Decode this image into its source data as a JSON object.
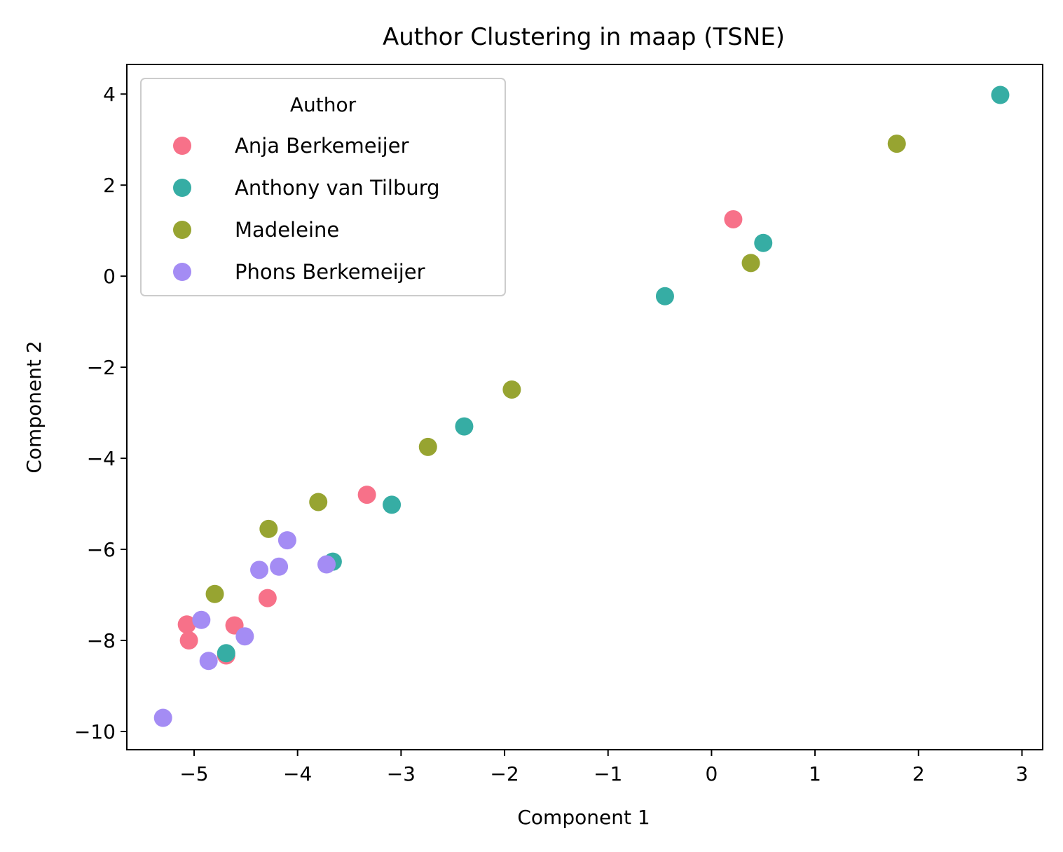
{
  "chart_data": {
    "type": "scatter",
    "title": "Author Clustering in maap (TSNE)",
    "xlabel": "Component 1",
    "ylabel": "Component 2",
    "xlim": [
      -5.65,
      3.2
    ],
    "ylim": [
      -10.4,
      4.65
    ],
    "xticks": [
      -5,
      -4,
      -3,
      -2,
      -1,
      0,
      1,
      2,
      3
    ],
    "yticks": [
      4,
      2,
      0,
      -2,
      -4,
      -6,
      -8,
      -10
    ],
    "grid": false,
    "legend": {
      "title": "Author",
      "placement": "top-left"
    },
    "series": [
      {
        "name": "Anja Berkemeijer",
        "color": "#f77189",
        "points": [
          [
            0.21,
            1.25
          ],
          [
            -3.33,
            -4.8
          ],
          [
            -4.29,
            -7.07
          ],
          [
            -4.61,
            -7.67
          ],
          [
            -5.07,
            -7.65
          ],
          [
            -5.05,
            -8.0
          ],
          [
            -4.69,
            -8.33
          ]
        ]
      },
      {
        "name": "Anthony van Tilburg",
        "color": "#36ada4",
        "points": [
          [
            2.79,
            3.98
          ],
          [
            0.5,
            0.73
          ],
          [
            -0.45,
            -0.44
          ],
          [
            -2.39,
            -3.3
          ],
          [
            -3.09,
            -5.02
          ],
          [
            -3.66,
            -6.27
          ],
          [
            -4.69,
            -8.28
          ]
        ]
      },
      {
        "name": "Madeleine",
        "color": "#97a431",
        "points": [
          [
            1.79,
            2.91
          ],
          [
            0.38,
            0.29
          ],
          [
            -1.93,
            -2.49
          ],
          [
            -2.74,
            -3.75
          ],
          [
            -3.8,
            -4.96
          ],
          [
            -4.28,
            -5.55
          ],
          [
            -4.8,
            -6.98
          ]
        ]
      },
      {
        "name": "Phons Berkemeijer",
        "color": "#a48cf4",
        "points": [
          [
            -4.1,
            -5.8
          ],
          [
            -3.72,
            -6.33
          ],
          [
            -4.18,
            -6.38
          ],
          [
            -4.37,
            -6.45
          ],
          [
            -4.93,
            -7.55
          ],
          [
            -4.51,
            -7.91
          ],
          [
            -4.86,
            -8.45
          ],
          [
            -5.3,
            -9.7
          ]
        ]
      }
    ]
  }
}
